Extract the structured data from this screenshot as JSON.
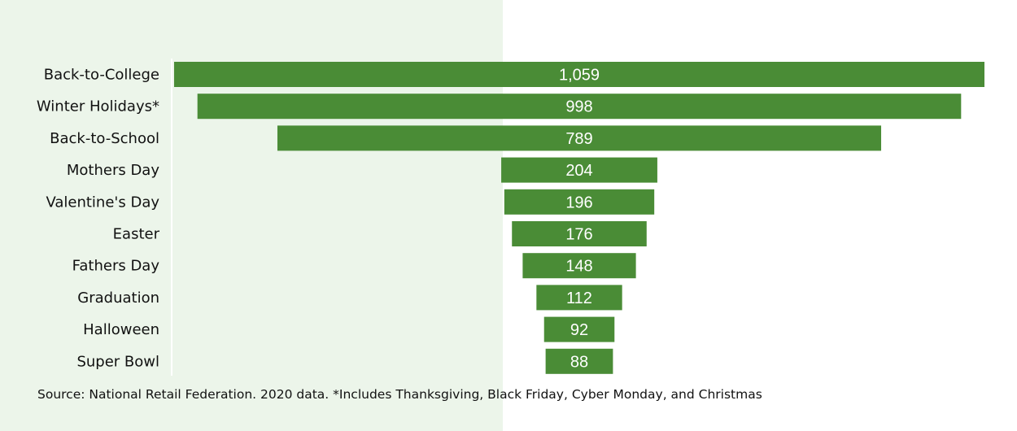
{
  "colors": {
    "bar": "#4a8c36",
    "panel_background": "#ecf5ea",
    "label_text": "#111111",
    "value_text": "#ffffff"
  },
  "chart_data": {
    "type": "bar",
    "orientation": "horizontal-centered-funnel",
    "categories": [
      "Back-to-College",
      "Winter Holidays*",
      "Back-to-School",
      "Mothers Day",
      "Valentine's Day",
      "Easter",
      "Fathers Day",
      "Graduation",
      "Halloween",
      "Super Bowl"
    ],
    "values": [
      1059,
      998,
      789,
      204,
      196,
      176,
      148,
      112,
      92,
      88
    ],
    "value_labels": [
      "1,059",
      "998",
      "789",
      "204",
      "196",
      "176",
      "148",
      "112",
      "92",
      "88"
    ],
    "title": "",
    "xlabel": "",
    "ylabel": "",
    "grid": false,
    "legend": "none"
  },
  "footnote": "Source: National Retail Federation. 2020 data. *Includes Thanksgiving, Black Friday, Cyber Monday, and Christmas"
}
